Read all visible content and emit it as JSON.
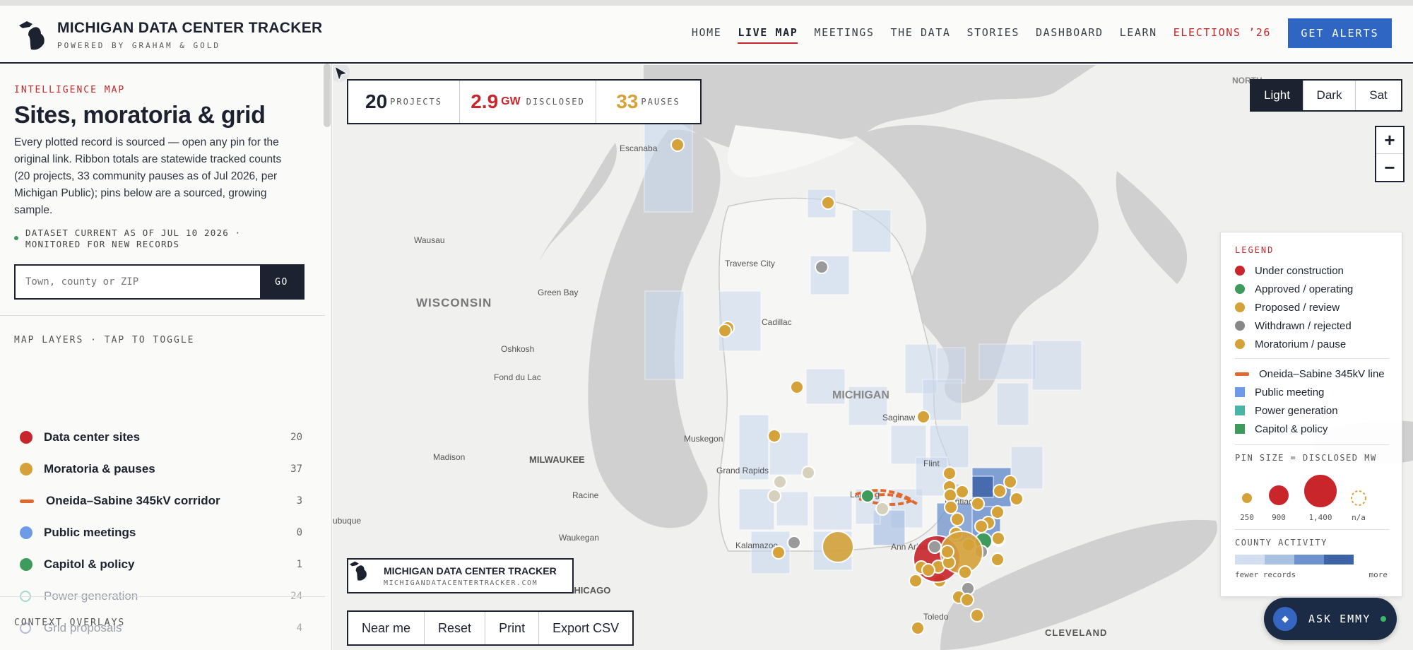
{
  "header": {
    "title": "MICHIGAN DATA CENTER TRACKER",
    "subtitle": "POWERED BY GRAHAM & GOLD",
    "nav": [
      "HOME",
      "LIVE MAP",
      "MEETINGS",
      "THE DATA",
      "STORIES",
      "DASHBOARD",
      "LEARN",
      "ELECTIONS ’26"
    ],
    "active_nav": "LIVE MAP",
    "cta": "GET ALERTS"
  },
  "sidebar": {
    "eyebrow": "INTELLIGENCE MAP",
    "title": "Sites, moratoria & grid",
    "description": "Every plotted record is sourced — open any pin for the original link. Ribbon totals are statewide tracked counts (20 projects, 33 community pauses as of Jul 2026, per Michigan Public); pins below are a sourced, growing sample.",
    "dataset_note": "DATASET CURRENT AS OF JUL 10 2026 · MONITORED FOR NEW RECORDS",
    "search": {
      "placeholder": "Town, county or ZIP",
      "button": "GO"
    },
    "layers_heading": "MAP LAYERS · TAP TO TOGGLE",
    "layers": [
      {
        "label": "Data center sites",
        "count": "20",
        "color": "#c8262b",
        "enabled": true,
        "marker": "dot"
      },
      {
        "label": "Moratoria & pauses",
        "count": "37",
        "color": "#d5a23a",
        "enabled": true,
        "marker": "dot"
      },
      {
        "label": "Oneida–Sabine 345kV corridor",
        "count": "3",
        "color": "#e0692e",
        "enabled": true,
        "marker": "line"
      },
      {
        "label": "Public meetings",
        "count": "0",
        "color": "#6e9ae8",
        "enabled": true,
        "marker": "dot"
      },
      {
        "label": "Capitol & policy",
        "count": "1",
        "color": "#3e9b5b",
        "enabled": true,
        "marker": "dot"
      },
      {
        "label": "Power generation",
        "count": "24",
        "color": "#a8d8cf",
        "enabled": false,
        "marker": "ring"
      },
      {
        "label": "Grid proposals",
        "count": "4",
        "color": "#b8b8d8",
        "enabled": false,
        "marker": "ring"
      }
    ],
    "context_heading": "CONTEXT OVERLAYS"
  },
  "stats": [
    {
      "value": "20",
      "unit": "",
      "label": "PROJECTS",
      "color": "#1c2230"
    },
    {
      "value": "2.9",
      "unit": "GW",
      "label": "DISCLOSED",
      "color": "#c8262b"
    },
    {
      "value": "33",
      "unit": "",
      "label": "PAUSES",
      "color": "#d5a23a"
    }
  ],
  "map_styles": [
    "Light",
    "Dark",
    "Sat"
  ],
  "active_style": "Light",
  "zoom": {
    "in": "+",
    "out": "−"
  },
  "map_labels": [
    {
      "text": "WISCONSIN",
      "kind": "state"
    },
    {
      "text": "MICHIGAN",
      "kind": "state"
    },
    {
      "text": "Wausau",
      "kind": "city"
    },
    {
      "text": "Green Bay",
      "kind": "city"
    },
    {
      "text": "Oshkosh",
      "kind": "city"
    },
    {
      "text": "Fond du Lac",
      "kind": "city"
    },
    {
      "text": "Madison",
      "kind": "city"
    },
    {
      "text": "MILWAUKEE",
      "kind": "metro"
    },
    {
      "text": "Racine",
      "kind": "city"
    },
    {
      "text": "Waukegan",
      "kind": "city"
    },
    {
      "text": "CHICAGO",
      "kind": "metro"
    },
    {
      "text": "ubuque",
      "kind": "city"
    },
    {
      "text": "Escanaba",
      "kind": "city"
    },
    {
      "text": "Traverse City",
      "kind": "city"
    },
    {
      "text": "Cadillac",
      "kind": "city"
    },
    {
      "text": "Muskegon",
      "kind": "city"
    },
    {
      "text": "Grand Rapids",
      "kind": "city"
    },
    {
      "text": "Kalamazoo",
      "kind": "city"
    },
    {
      "text": "Saginaw",
      "kind": "city"
    },
    {
      "text": "Flint",
      "kind": "city"
    },
    {
      "text": "Lansing",
      "kind": "city"
    },
    {
      "text": "Pontiac",
      "kind": "city"
    },
    {
      "text": "Ann Arbor",
      "kind": "city"
    },
    {
      "text": "Toledo",
      "kind": "city"
    },
    {
      "text": "CLEVELAND",
      "kind": "metro"
    },
    {
      "text": "NORTH",
      "kind": "state"
    }
  ],
  "legend": {
    "title": "LEGEND",
    "status": [
      {
        "label": "Under construction",
        "color": "#c8262b"
      },
      {
        "label": "Approved / operating",
        "color": "#3e9b5b"
      },
      {
        "label": "Proposed / review",
        "color": "#d5a23a"
      },
      {
        "label": "Withdrawn / rejected",
        "color": "#888888"
      },
      {
        "label": "Moratorium / pause",
        "color": "#d5a23a"
      }
    ],
    "line": {
      "label": "Oneida–Sabine 345kV line",
      "color": "#e0692e"
    },
    "areas": [
      {
        "label": "Public meeting",
        "color": "#6e9ae8"
      },
      {
        "label": "Power generation",
        "color": "#4ab5a5"
      },
      {
        "label": "Capitol & policy",
        "color": "#3e9b5b"
      }
    ],
    "size_caption": "PIN SIZE = DISCLOSED MW",
    "sizes": [
      {
        "label": "250",
        "color": "#d5a23a"
      },
      {
        "label": "900",
        "color": "#c8262b"
      },
      {
        "label": "1,400",
        "color": "#c8262b"
      },
      {
        "label": "n/a",
        "color": "#d5a23a"
      }
    ],
    "activity_caption": "COUNTY ACTIVITY",
    "activity_scale": [
      "#d3dff0",
      "#a8c1e3",
      "#6d92cf",
      "#3e64a8"
    ],
    "activity_low": "fewer records",
    "activity_high": "more"
  },
  "watermark": {
    "title": "MICHIGAN DATA CENTER TRACKER",
    "url": "MICHIGANDATACENTERTRACKER.COM"
  },
  "tools": [
    "Near me",
    "Reset",
    "Print",
    "Export CSV"
  ],
  "assistant": {
    "label": "ASK EMMY",
    "icon": "diamond-icon"
  }
}
